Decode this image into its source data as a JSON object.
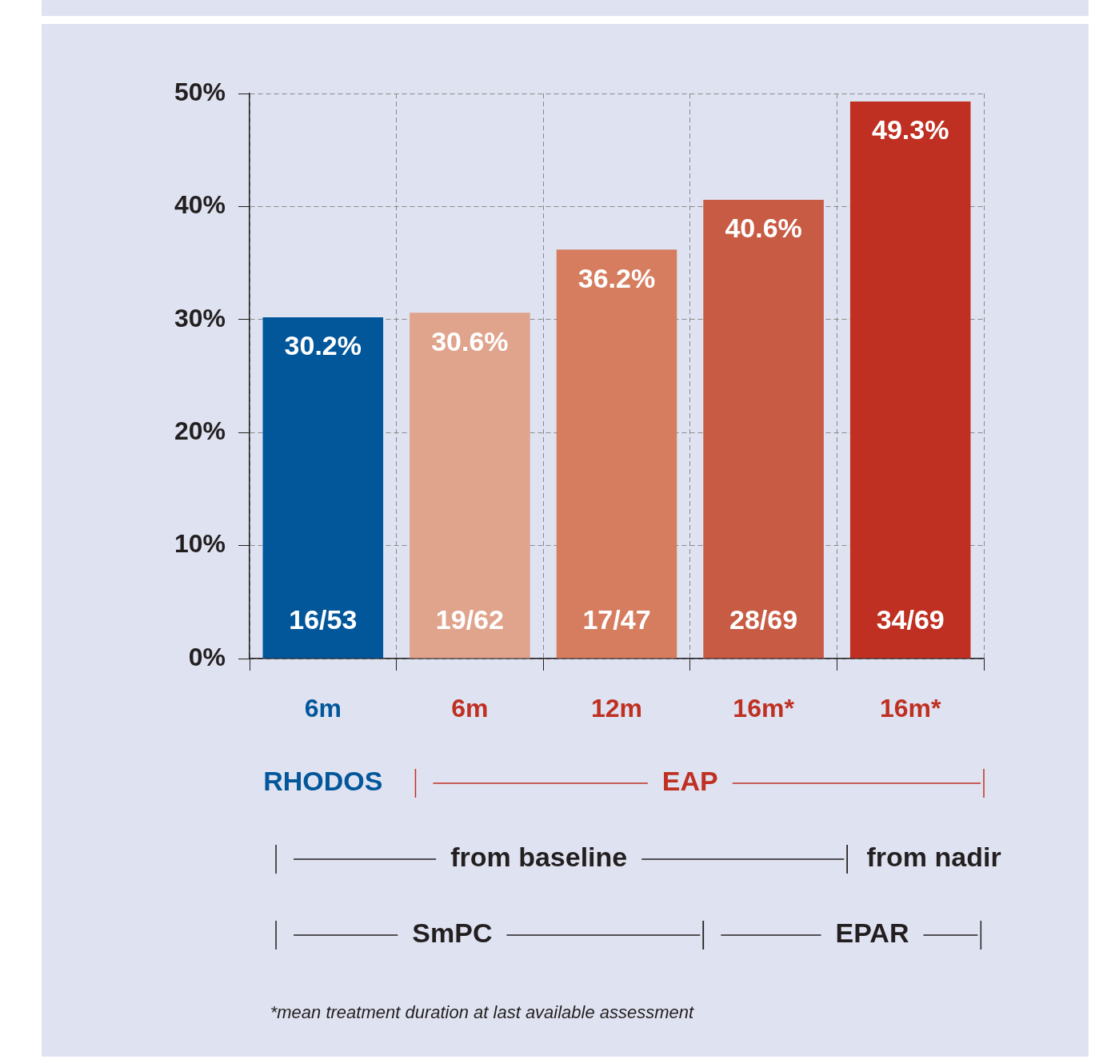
{
  "chart_data": {
    "type": "bar",
    "categories": [
      "6m",
      "6m",
      "12m",
      "16m*",
      "16m*"
    ],
    "values": [
      30.2,
      30.6,
      36.2,
      40.6,
      49.3
    ],
    "colors": [
      "#02569a",
      "#e0a38b",
      "#d67d60",
      "#c85b43",
      "#bf3022"
    ],
    "value_labels": [
      "30.2%",
      "30.6%",
      "36.2%",
      "40.6%",
      "49.3%"
    ],
    "ylim": [
      0,
      50
    ],
    "yticks": [
      {
        "value": 0,
        "label": "0%"
      },
      {
        "value": 10,
        "label": "10%"
      },
      {
        "value": 20,
        "label": "20%"
      },
      {
        "value": 30,
        "label": "30%"
      },
      {
        "value": 40,
        "label": "40%"
      },
      {
        "value": 50,
        "label": "50%"
      }
    ],
    "grid": true,
    "legend": false,
    "annotations": [
      "RHODOS",
      "EAP",
      "from baseline",
      "from nadir",
      "SmPC",
      "EPAR",
      "*mean treatment duration at last available assessment",
      "16/53",
      "19/62",
      "17/47",
      "28/69",
      "34/69"
    ]
  }
}
